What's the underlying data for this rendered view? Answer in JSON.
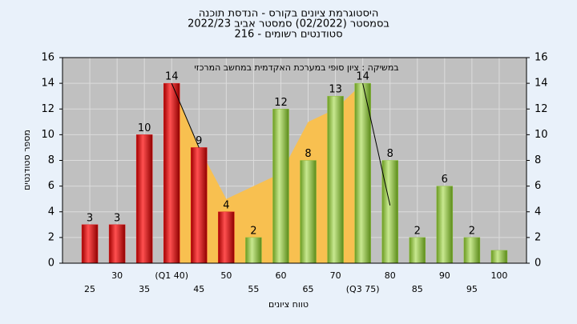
{
  "chart_data": {
    "type": "bar",
    "title": [
      "היסטוגרמת ציונים בקורס - הנדסת תוכנה",
      "בסמסטר  (02/2022)  סמסטר אביב 2022/23",
      "סטודנטים רשומים - 216"
    ],
    "annotation": "במשיקה : ציון סופי במערכת האקדמית במחשב המרכזי",
    "x_label": "טווח ציונים",
    "y_label": "מספר סטודנטים",
    "categories": [
      "25",
      "30",
      "35",
      "(Q1 40)",
      "45",
      "50",
      "55",
      "60",
      "65",
      "70",
      "(Q3 75)",
      "80",
      "85",
      "90",
      "95",
      "100"
    ],
    "series": [
      {
        "color": "#e02020",
        "values": [
          3,
          3,
          10,
          14,
          9,
          4,
          null,
          null,
          null,
          null,
          null,
          null,
          null,
          null,
          null,
          null
        ]
      },
      {
        "color": "#8ec040",
        "values": [
          null,
          null,
          null,
          null,
          null,
          null,
          2,
          12,
          8,
          13,
          14,
          8,
          2,
          6,
          2,
          1
        ],
        "value_labels": [
          null,
          null,
          null,
          null,
          null,
          null,
          "2",
          "12",
          "8",
          "13",
          "14",
          "8",
          "2",
          "6",
          "2",
          null
        ]
      }
    ],
    "area": {
      "color": "#f8c050",
      "values": [
        null,
        null,
        null,
        14,
        9,
        5,
        6,
        7,
        11,
        12,
        14,
        null,
        null,
        null,
        null,
        null
      ]
    },
    "line": {
      "color": "#000000",
      "values": [
        null,
        null,
        null,
        14,
        9,
        null,
        null,
        null,
        null,
        null,
        14,
        4.5,
        null,
        null,
        null,
        null
      ]
    },
    "ylim": [
      0,
      16
    ],
    "yticks": [
      0,
      2,
      4,
      6,
      8,
      10,
      12,
      14,
      16
    ],
    "grid": true
  }
}
